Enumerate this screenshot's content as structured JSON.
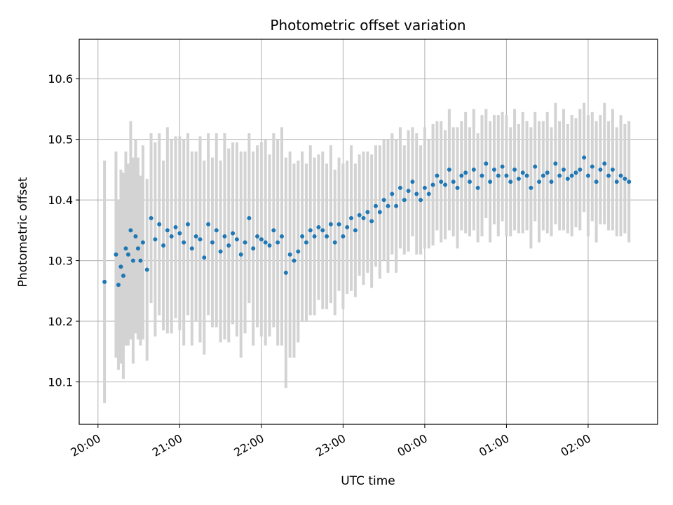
{
  "chart_data": {
    "type": "scatter",
    "title": "Photometric offset variation",
    "xlabel": "UTC time",
    "ylabel": "Photometric offset",
    "x_tick_labels": [
      "20:00",
      "21:00",
      "22:00",
      "23:00",
      "00:00",
      "01:00",
      "02:00"
    ],
    "x_ticks_hours": [
      20,
      21,
      22,
      23,
      24,
      25,
      26
    ],
    "xlim_hours": [
      19.77,
      26.85
    ],
    "y_ticks": [
      10.1,
      10.2,
      10.3,
      10.4,
      10.5,
      10.6
    ],
    "y_tick_labels": [
      "10.1",
      "10.2",
      "10.3",
      "10.4",
      "10.5",
      "10.6"
    ],
    "ylim": [
      10.03,
      10.665
    ],
    "grid": true,
    "colors": {
      "points": "#1f77b4",
      "error_bars": "#d3d3d3",
      "grid": "#b0b0b0"
    },
    "series": [
      {
        "x_hours": [
          20.08,
          20.22,
          20.25,
          20.28,
          20.31,
          20.34,
          20.37,
          20.4,
          20.43,
          20.46,
          20.49,
          20.52,
          20.55,
          20.6,
          20.65,
          20.7,
          20.75,
          20.8,
          20.85,
          20.9,
          20.95,
          21.0,
          21.05,
          21.1,
          21.15,
          21.2,
          21.25,
          21.3,
          21.35,
          21.4,
          21.45,
          21.5,
          21.55,
          21.6,
          21.65,
          21.7,
          21.75,
          21.8,
          21.85,
          21.9,
          21.95,
          22.0,
          22.05,
          22.1,
          22.15,
          22.2,
          22.25,
          22.3,
          22.35,
          22.4,
          22.45,
          22.5,
          22.55,
          22.6,
          22.65,
          22.7,
          22.75,
          22.8,
          22.85,
          22.9,
          22.95,
          23.0,
          23.05,
          23.1,
          23.15,
          23.2,
          23.25,
          23.3,
          23.35,
          23.4,
          23.45,
          23.5,
          23.55,
          23.6,
          23.65,
          23.7,
          23.75,
          23.8,
          23.85,
          23.9,
          23.95,
          24.0,
          24.05,
          24.1,
          24.15,
          24.2,
          24.25,
          24.3,
          24.35,
          24.4,
          24.45,
          24.5,
          24.55,
          24.6,
          24.65,
          24.7,
          24.75,
          24.8,
          24.85,
          24.9,
          24.95,
          25.0,
          25.05,
          25.1,
          25.15,
          25.2,
          25.25,
          25.3,
          25.35,
          25.4,
          25.45,
          25.5,
          25.55,
          25.6,
          25.65,
          25.7,
          25.75,
          25.8,
          25.85,
          25.9,
          25.95,
          26.0,
          26.05,
          26.1,
          26.15,
          26.2,
          26.25,
          26.3,
          26.35,
          26.4,
          26.45,
          26.5
        ],
        "y": [
          10.265,
          10.31,
          10.26,
          10.29,
          10.275,
          10.32,
          10.31,
          10.35,
          10.3,
          10.34,
          10.32,
          10.3,
          10.33,
          10.285,
          10.37,
          10.335,
          10.36,
          10.325,
          10.35,
          10.34,
          10.355,
          10.345,
          10.33,
          10.36,
          10.32,
          10.34,
          10.335,
          10.305,
          10.36,
          10.33,
          10.35,
          10.315,
          10.34,
          10.325,
          10.345,
          10.335,
          10.31,
          10.33,
          10.37,
          10.32,
          10.34,
          10.335,
          10.33,
          10.325,
          10.35,
          10.33,
          10.34,
          10.28,
          10.31,
          10.3,
          10.315,
          10.34,
          10.33,
          10.35,
          10.34,
          10.355,
          10.35,
          10.34,
          10.36,
          10.33,
          10.36,
          10.34,
          10.355,
          10.37,
          10.35,
          10.375,
          10.37,
          10.38,
          10.365,
          10.39,
          10.38,
          10.4,
          10.39,
          10.41,
          10.39,
          10.42,
          10.4,
          10.415,
          10.43,
          10.41,
          10.4,
          10.42,
          10.41,
          10.425,
          10.44,
          10.43,
          10.425,
          10.45,
          10.43,
          10.42,
          10.44,
          10.445,
          10.43,
          10.45,
          10.42,
          10.44,
          10.46,
          10.43,
          10.45,
          10.44,
          10.455,
          10.44,
          10.43,
          10.45,
          10.435,
          10.445,
          10.44,
          10.42,
          10.455,
          10.43,
          10.44,
          10.445,
          10.43,
          10.46,
          10.44,
          10.45,
          10.435,
          10.44,
          10.445,
          10.45,
          10.47,
          10.44,
          10.455,
          10.43,
          10.45,
          10.46,
          10.44,
          10.45,
          10.43,
          10.44,
          10.435,
          10.43
        ],
        "err": [
          0.2,
          0.17,
          0.14,
          0.16,
          0.17,
          0.16,
          0.15,
          0.18,
          0.17,
          0.16,
          0.15,
          0.14,
          0.16,
          0.15,
          0.14,
          0.16,
          0.15,
          0.14,
          0.17,
          0.16,
          0.15,
          0.16,
          0.17,
          0.15,
          0.16,
          0.14,
          0.17,
          0.16,
          0.15,
          0.14,
          0.16,
          0.15,
          0.17,
          0.16,
          0.15,
          0.16,
          0.17,
          0.15,
          0.14,
          0.16,
          0.15,
          0.16,
          0.17,
          0.15,
          0.16,
          0.17,
          0.18,
          0.19,
          0.17,
          0.16,
          0.15,
          0.14,
          0.13,
          0.14,
          0.13,
          0.12,
          0.13,
          0.12,
          0.13,
          0.12,
          0.11,
          0.12,
          0.11,
          0.12,
          0.11,
          0.1,
          0.11,
          0.1,
          0.11,
          0.1,
          0.11,
          0.1,
          0.11,
          0.1,
          0.11,
          0.1,
          0.09,
          0.1,
          0.09,
          0.1,
          0.09,
          0.1,
          0.09,
          0.1,
          0.09,
          0.1,
          0.09,
          0.1,
          0.09,
          0.1,
          0.09,
          0.1,
          0.09,
          0.1,
          0.09,
          0.1,
          0.09,
          0.1,
          0.09,
          0.1,
          0.09,
          0.1,
          0.09,
          0.1,
          0.09,
          0.1,
          0.09,
          0.1,
          0.09,
          0.1,
          0.09,
          0.1,
          0.09,
          0.1,
          0.09,
          0.1,
          0.09,
          0.1,
          0.09,
          0.1,
          0.09,
          0.1,
          0.09,
          0.1,
          0.09,
          0.1,
          0.09,
          0.1,
          0.09,
          0.1,
          0.09,
          0.1
        ]
      }
    ]
  }
}
